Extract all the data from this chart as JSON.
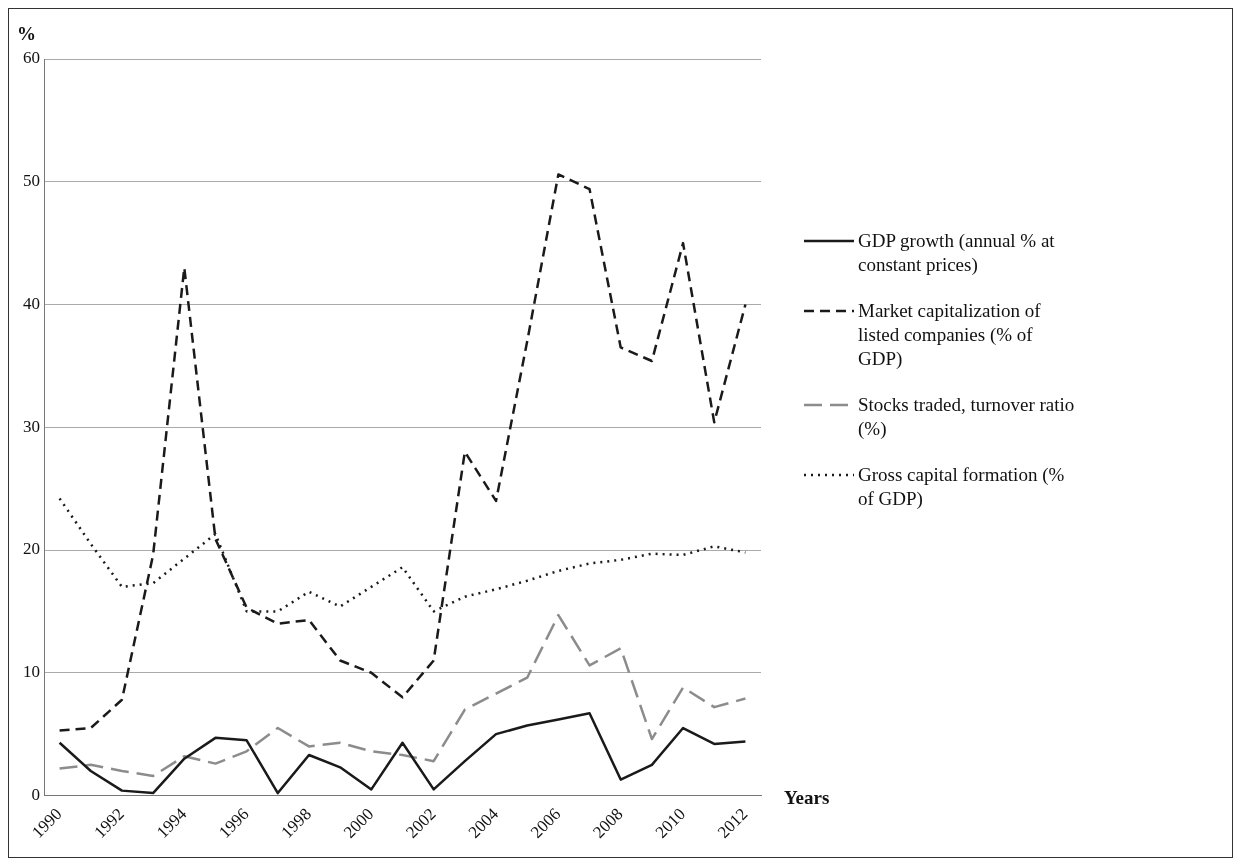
{
  "chart_data": {
    "type": "line",
    "ylabel": "%",
    "xlabel": "Years",
    "categories": [
      "1990",
      null,
      "1992",
      null,
      "1994",
      null,
      "1996",
      null,
      "1998",
      null,
      "2000",
      null,
      "2002",
      null,
      "2004",
      null,
      "2006",
      null,
      "2008",
      null,
      "2010",
      null,
      "2012"
    ],
    "ylim": [
      0,
      60
    ],
    "yticks": [
      0,
      10,
      20,
      30,
      40,
      50,
      60
    ],
    "grid": "y",
    "legend": "right",
    "marker": "none",
    "series": [
      {
        "name": "GDP growth (annual % at constant prices)",
        "color": "#1a1a1a",
        "line_style": "solid",
        "values": [
          4.3,
          2.0,
          0.4,
          0.2,
          3.0,
          4.7,
          4.5,
          0.2,
          3.3,
          2.3,
          0.5,
          4.3,
          0.5,
          2.8,
          5.0,
          5.7,
          6.2,
          6.7,
          1.3,
          2.5,
          5.5,
          4.2,
          4.4
        ]
      },
      {
        "name": "Market capitalization of listed companies (% of GDP)",
        "color": "#1a1a1a",
        "line_style": "dashed",
        "values": [
          5.3,
          5.5,
          7.8,
          19.6,
          43.0,
          20.9,
          15.3,
          14.0,
          14.3,
          11.0,
          10.0,
          8.0,
          11.0,
          28.0,
          24.0,
          37.0,
          50.6,
          49.4,
          36.5,
          35.4,
          45.0,
          30.4,
          40.0
        ]
      },
      {
        "name": "Stocks traded, turnover ratio (%)",
        "color": "#8c8c8c",
        "line_style": "dashed",
        "values": [
          2.2,
          2.5,
          2.0,
          1.6,
          3.2,
          2.6,
          3.6,
          5.5,
          4.0,
          4.3,
          3.6,
          3.3,
          2.8,
          7.0,
          8.3,
          9.6,
          14.7,
          10.6,
          12.0,
          4.6,
          8.8,
          7.2,
          7.9
        ]
      },
      {
        "name": "Gross capital formation (% of GDP)",
        "color": "#1a1a1a",
        "line_style": "dotted",
        "values": [
          24.2,
          20.5,
          17.0,
          17.3,
          19.3,
          21.3,
          15.0,
          15.0,
          16.6,
          15.4,
          17.0,
          18.6,
          15.0,
          16.2,
          16.8,
          17.5,
          18.3,
          18.9,
          19.2,
          19.7,
          19.6,
          20.3,
          19.8
        ]
      }
    ]
  }
}
